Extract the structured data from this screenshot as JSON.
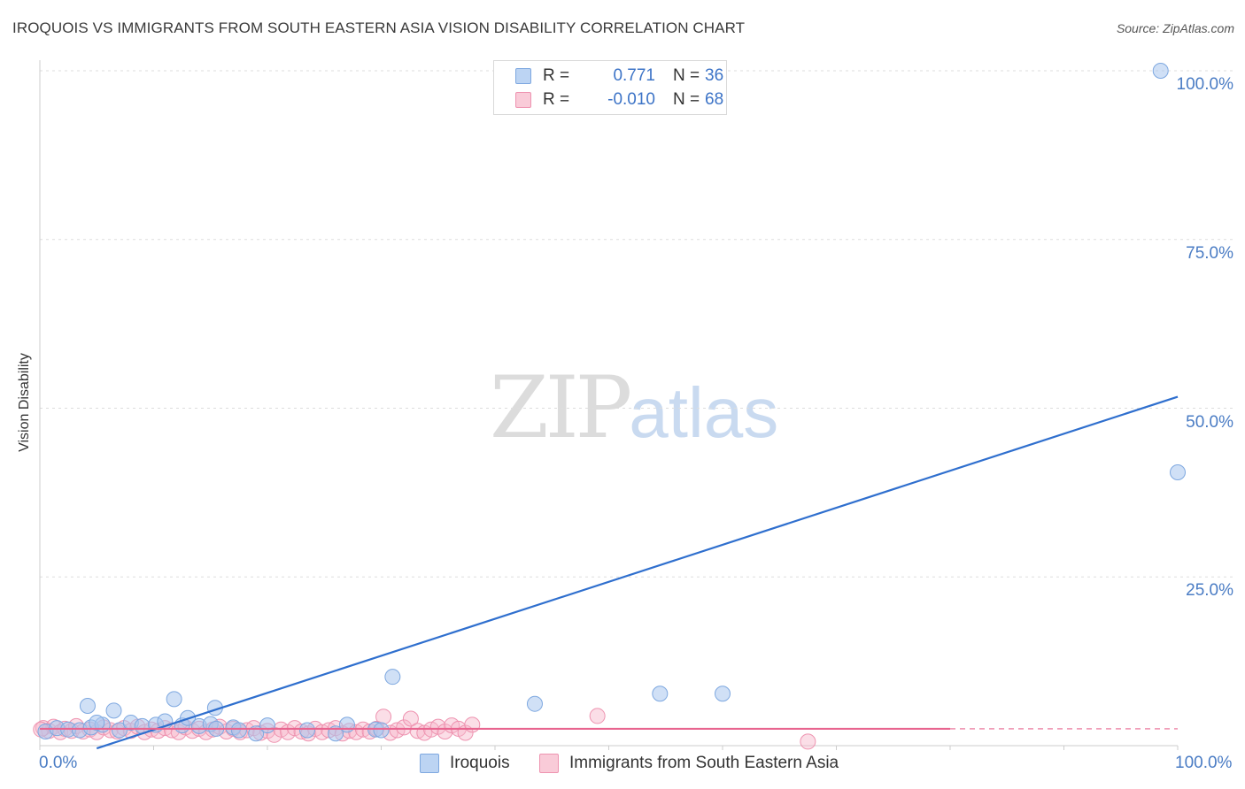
{
  "header": {
    "title": "IROQUOIS VS IMMIGRANTS FROM SOUTH EASTERN ASIA VISION DISABILITY CORRELATION CHART",
    "source": "Source: ZipAtlas.com"
  },
  "watermark": {
    "zip": "ZIP",
    "atlas": "atlas"
  },
  "legend": {
    "r_label": "R =",
    "n_label": "N =",
    "series1": {
      "r": "0.771",
      "n": "36"
    },
    "series2": {
      "r": "-0.010",
      "n": "68"
    }
  },
  "bottom_legend": {
    "series1": "Iroquois",
    "series2": "Immigrants from South Eastern Asia"
  },
  "colors": {
    "blue_fill": "#a9c7ee",
    "blue_stroke": "#7ea8e0",
    "blue_line": "#2f6fce",
    "pink_fill": "#f6b6c9",
    "pink_stroke": "#ee93b0",
    "pink_line": "#e8648f",
    "tick_text": "#4a7cc4",
    "grid": "#dddddd"
  },
  "chart_data": {
    "type": "scatter",
    "title": "IROQUOIS VS IMMIGRANTS FROM SOUTH EASTERN ASIA VISION DISABILITY CORRELATION CHART",
    "xlabel": "",
    "ylabel": "Vision Disability",
    "xlim": [
      0,
      100
    ],
    "ylim": [
      0,
      100
    ],
    "x_ticks": [
      "0.0%",
      "100.0%"
    ],
    "y_ticks": [
      {
        "value": 100,
        "label": "100.0%"
      },
      {
        "value": 75,
        "label": "75.0%"
      },
      {
        "value": 50,
        "label": "50.0%"
      },
      {
        "value": 25,
        "label": "25.0%"
      }
    ],
    "series": [
      {
        "name": "Iroquois",
        "r": 0.771,
        "n": 36,
        "color": "#a9c7ee",
        "trend": {
          "x": [
            5,
            100
          ],
          "y": [
            -0.4,
            51.7
          ]
        },
        "points": [
          [
            0.5,
            2.1
          ],
          [
            1.5,
            2.6
          ],
          [
            2.5,
            2.4
          ],
          [
            3.5,
            2.3
          ],
          [
            4.5,
            2.7
          ],
          [
            5.5,
            3.1
          ],
          [
            4.2,
            5.9
          ],
          [
            6.5,
            5.2
          ],
          [
            5.0,
            3.4
          ],
          [
            7.0,
            2.3
          ],
          [
            8.0,
            3.4
          ],
          [
            9.0,
            2.9
          ],
          [
            10.2,
            3.1
          ],
          [
            11.0,
            3.6
          ],
          [
            12.5,
            3.0
          ],
          [
            11.8,
            6.9
          ],
          [
            13.0,
            4.1
          ],
          [
            14.0,
            2.9
          ],
          [
            15.0,
            3.2
          ],
          [
            15.5,
            2.5
          ],
          [
            17.0,
            2.7
          ],
          [
            17.5,
            2.3
          ],
          [
            15.4,
            5.6
          ],
          [
            19.0,
            1.8
          ],
          [
            20.0,
            3.0
          ],
          [
            23.5,
            2.3
          ],
          [
            26.0,
            1.8
          ],
          [
            27.0,
            3.1
          ],
          [
            29.5,
            2.4
          ],
          [
            30.0,
            2.3
          ],
          [
            31.0,
            10.2
          ],
          [
            43.5,
            6.2
          ],
          [
            54.5,
            7.7
          ],
          [
            60.0,
            7.7
          ],
          [
            98.5,
            100.0
          ],
          [
            100.0,
            40.5
          ]
        ]
      },
      {
        "name": "Immigrants from South Eastern Asia",
        "r": -0.01,
        "n": 68,
        "color": "#f6b6c9",
        "trend": {
          "x": [
            0,
            80
          ],
          "y": [
            2.5,
            2.5
          ],
          "dashed_to": 100
        },
        "points": [
          [
            0.3,
            2.6
          ],
          [
            0.8,
            2.2
          ],
          [
            1.2,
            2.8
          ],
          [
            1.8,
            2.0
          ],
          [
            2.2,
            2.5
          ],
          [
            2.8,
            2.2
          ],
          [
            3.2,
            2.9
          ],
          [
            3.8,
            2.1
          ],
          [
            4.4,
            2.4
          ],
          [
            5.0,
            2.0
          ],
          [
            5.6,
            2.7
          ],
          [
            6.2,
            2.3
          ],
          [
            6.8,
            2.1
          ],
          [
            7.4,
            2.6
          ],
          [
            8.0,
            2.2
          ],
          [
            8.6,
            2.8
          ],
          [
            9.2,
            2.0
          ],
          [
            9.8,
            2.4
          ],
          [
            10.4,
            2.2
          ],
          [
            11.0,
            2.6
          ],
          [
            11.6,
            2.3
          ],
          [
            12.2,
            2.0
          ],
          [
            12.8,
            2.7
          ],
          [
            13.4,
            2.2
          ],
          [
            14.0,
            2.5
          ],
          [
            14.6,
            2.0
          ],
          [
            15.2,
            2.4
          ],
          [
            15.8,
            2.8
          ],
          [
            16.4,
            2.1
          ],
          [
            17.0,
            2.5
          ],
          [
            17.6,
            2.0
          ],
          [
            18.2,
            2.3
          ],
          [
            18.8,
            2.6
          ],
          [
            19.4,
            1.9
          ],
          [
            20.0,
            2.2
          ],
          [
            20.6,
            1.6
          ],
          [
            21.2,
            2.4
          ],
          [
            21.8,
            2.0
          ],
          [
            22.4,
            2.6
          ],
          [
            23.0,
            2.1
          ],
          [
            23.6,
            1.8
          ],
          [
            24.2,
            2.5
          ],
          [
            24.8,
            2.0
          ],
          [
            25.4,
            2.3
          ],
          [
            26.0,
            2.6
          ],
          [
            26.6,
            1.8
          ],
          [
            27.2,
            2.2
          ],
          [
            27.8,
            2.0
          ],
          [
            28.4,
            2.4
          ],
          [
            29.0,
            2.1
          ],
          [
            29.6,
            2.5
          ],
          [
            30.2,
            4.3
          ],
          [
            30.8,
            1.9
          ],
          [
            31.4,
            2.3
          ],
          [
            32.0,
            2.7
          ],
          [
            32.6,
            4.0
          ],
          [
            33.2,
            2.2
          ],
          [
            33.8,
            1.9
          ],
          [
            34.4,
            2.4
          ],
          [
            35.0,
            2.8
          ],
          [
            35.6,
            2.1
          ],
          [
            36.2,
            3.0
          ],
          [
            36.8,
            2.5
          ],
          [
            37.4,
            1.9
          ],
          [
            38.0,
            3.1
          ],
          [
            49.0,
            4.4
          ],
          [
            67.5,
            0.6
          ],
          [
            0.1,
            2.4
          ]
        ]
      }
    ]
  }
}
